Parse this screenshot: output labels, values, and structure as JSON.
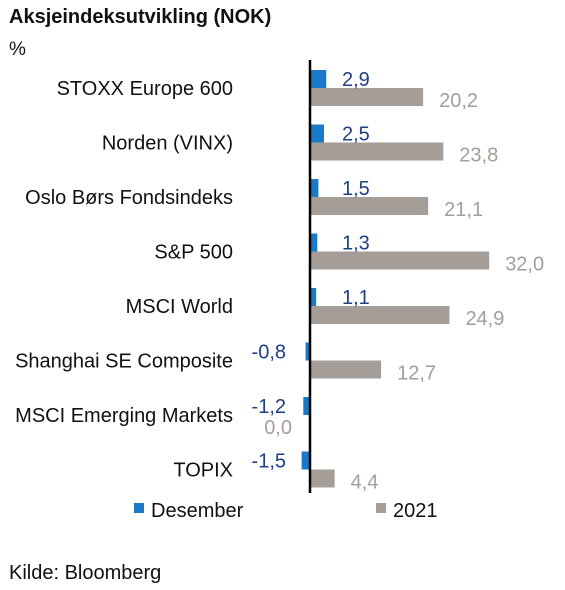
{
  "title": "Aksjeindeksutvikling (NOK)",
  "unit": "%",
  "source": "Kilde: Bloomberg",
  "colors": {
    "desember": "#1a7ac7",
    "year": "#a59d97",
    "desember_label": "#1f3f86",
    "year_label": "#a59d97",
    "axis": "#000000"
  },
  "chart_data": {
    "type": "bar",
    "orientation": "horizontal",
    "categories": [
      "STOXX Europe 600",
      "Norden (VINX)",
      "Oslo Børs Fondsindeks",
      "S&P 500",
      "MSCI World",
      "Shanghai SE Composite",
      "MSCI Emerging Markets",
      "TOPIX"
    ],
    "series": [
      {
        "name": "Desember",
        "values": [
          2.9,
          2.5,
          1.5,
          1.3,
          1.1,
          -0.8,
          -1.2,
          -1.5
        ],
        "labels": [
          "2,9",
          "2,5",
          "1,5",
          "1,3",
          "1,1",
          "-0,8",
          "-1,2",
          "-1,5"
        ]
      },
      {
        "name": "2021",
        "values": [
          20.2,
          23.8,
          21.1,
          32.0,
          24.9,
          12.7,
          0.0,
          4.4
        ],
        "labels": [
          "20,2",
          "23,8",
          "21,1",
          "32,0",
          "24,9",
          "12,7",
          "0,0",
          "4,4"
        ]
      }
    ],
    "legend": "bottom",
    "grid": false
  }
}
